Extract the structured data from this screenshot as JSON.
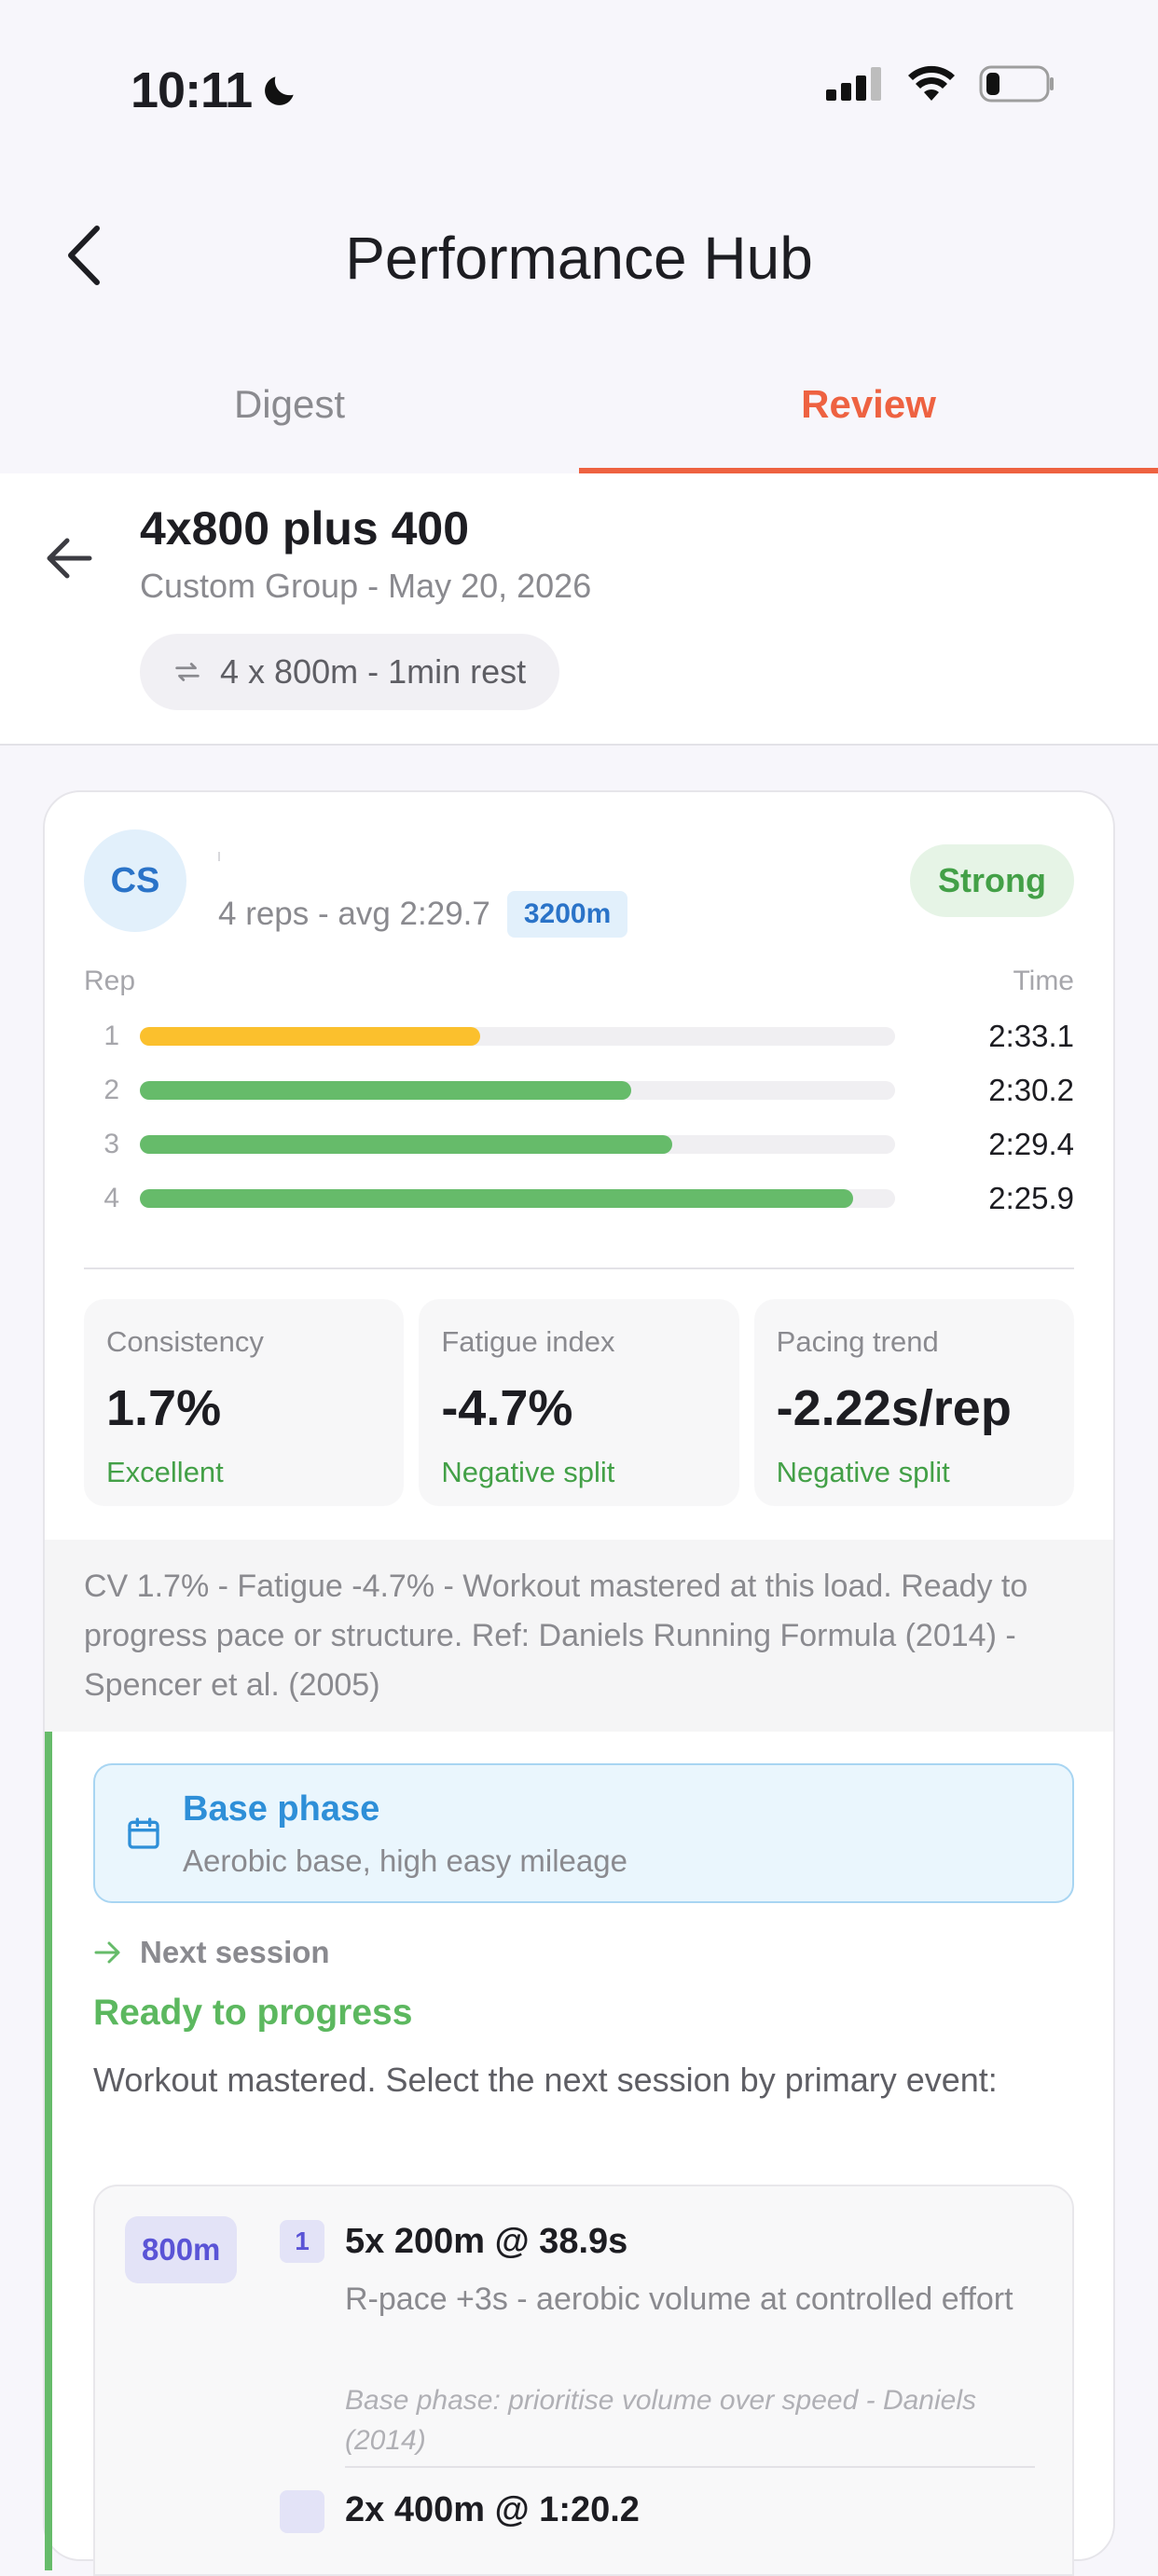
{
  "status_bar": {
    "time": "10:11"
  },
  "header": {
    "title": "Performance Hub"
  },
  "tabs": [
    {
      "label": "Digest",
      "active": false
    },
    {
      "label": "Review",
      "active": true
    }
  ],
  "workout": {
    "title": "4x800 plus 400",
    "subtitle": "Custom Group  -  May 20, 2026",
    "structure": "4 x 800m  -  1min rest"
  },
  "athlete": {
    "initials": "CS",
    "summary": "4 reps  -  avg 2:29.7",
    "distance": "3200m",
    "rating": "Strong"
  },
  "reps_table": {
    "col_rep": "Rep",
    "col_time": "Time",
    "rows": [
      {
        "rep": "1",
        "time": "2:33.1",
        "bar_fraction": 0.45,
        "color": "#fbc02d"
      },
      {
        "rep": "2",
        "time": "2:30.2",
        "bar_fraction": 0.65,
        "color": "#66bb6a"
      },
      {
        "rep": "3",
        "time": "2:29.4",
        "bar_fraction": 0.705,
        "color": "#66bb6a"
      },
      {
        "rep": "4",
        "time": "2:25.9",
        "bar_fraction": 0.945,
        "color": "#66bb6a"
      }
    ]
  },
  "metrics": [
    {
      "label": "Consistency",
      "value": "1.7%",
      "note": "Excellent"
    },
    {
      "label": "Fatigue index",
      "value": "-4.7%",
      "note": "Negative split"
    },
    {
      "label": "Pacing trend",
      "value": "-2.22s/rep",
      "note": "Negative split"
    }
  ],
  "analysis_text": "CV 1.7% - Fatigue -4.7% - Workout mastered at this load. Ready to progress pace or structure. Ref: Daniels Running Formula (2014) - Spencer et al. (2005)",
  "phase": {
    "title": "Base phase",
    "subtitle": "Aerobic base, high easy mileage"
  },
  "next": {
    "label": "Next session",
    "status": "Ready to progress",
    "text": "Workout mastered. Select the next session by primary event:",
    "event": "800m",
    "sessions": [
      {
        "num": "1",
        "title": "5x 200m @ 38.9s",
        "desc": "R-pace +3s - aerobic volume at controlled effort",
        "note": "Base phase: prioritise volume over speed - Daniels (2014)"
      },
      {
        "title": "2x 400m @ 1:20.2"
      }
    ]
  },
  "colors": {
    "accent": "#ee6241",
    "success": "#43a047",
    "info": "#2e8fd8",
    "event": "#5a54d6"
  }
}
